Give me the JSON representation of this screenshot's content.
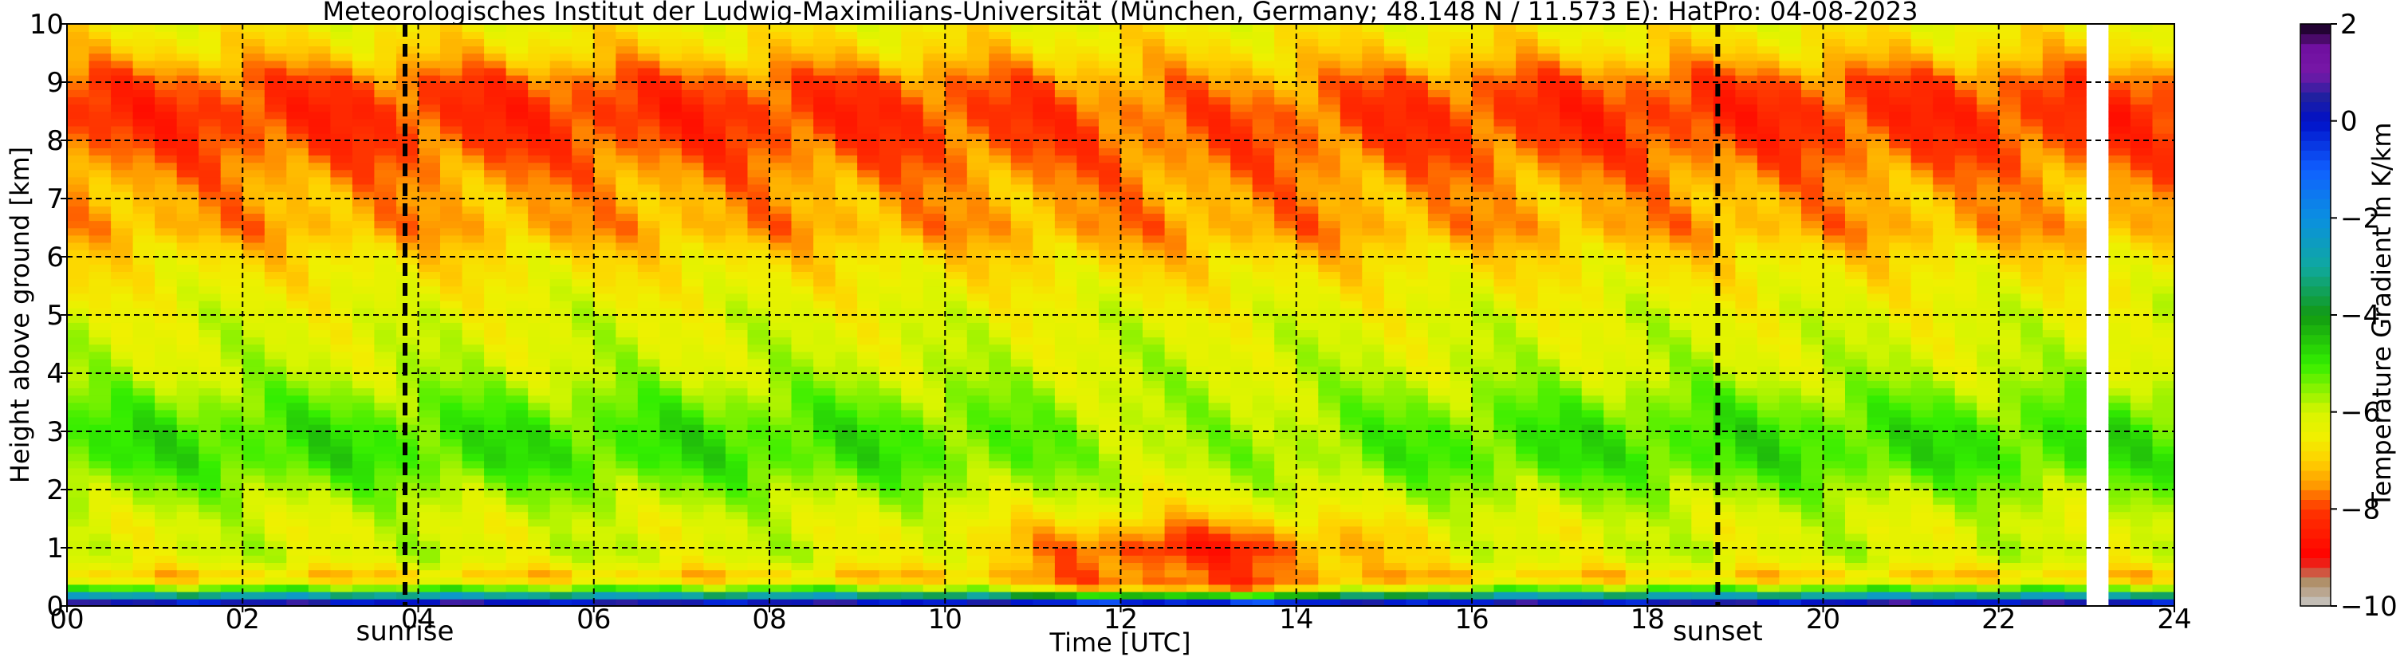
{
  "chart_data": {
    "type": "heatmap",
    "title": "Meteorologisches Institut der Ludwig-Maximilians-Universität (München, Germany; 48.148 N / 11.573 E):    HatPro: 04-08-2023",
    "xlabel": "Time [UTC]",
    "ylabel": "Height above ground [km]",
    "xlim": [
      0,
      24
    ],
    "ylim": [
      0,
      10
    ],
    "x_ticks": [
      0,
      2,
      4,
      6,
      8,
      10,
      12,
      14,
      16,
      18,
      20,
      22,
      24
    ],
    "x_tick_labels": [
      "00",
      "02",
      "04",
      "06",
      "08",
      "10",
      "12",
      "14",
      "16",
      "18",
      "20",
      "22",
      "24"
    ],
    "y_ticks": [
      0,
      1,
      2,
      3,
      4,
      5,
      6,
      7,
      8,
      9,
      10
    ],
    "y_tick_labels": [
      "0",
      "1",
      "2",
      "3",
      "4",
      "5",
      "6",
      "7",
      "8",
      "9",
      "10"
    ],
    "grid": true,
    "events": [
      {
        "label": "sunrise",
        "time": 3.85
      },
      {
        "label": "sunset",
        "time": 18.8
      }
    ],
    "colorbar": {
      "label": "Temperature Gradient in K/km",
      "range": [
        -10,
        2
      ],
      "ticks": [
        2,
        0,
        -2,
        -4,
        -6,
        -8,
        -10
      ],
      "tick_labels": [
        "2",
        "0",
        "−2",
        "−4",
        "−6",
        "−8",
        "−10"
      ],
      "colors": [
        {
          "value": -10,
          "color": "#c8c8c8"
        },
        {
          "value": -9.5,
          "color": "#b0906a"
        },
        {
          "value": -9,
          "color": "#ff0000"
        },
        {
          "value": -8,
          "color": "#ff3500"
        },
        {
          "value": -7.5,
          "color": "#ff9a00"
        },
        {
          "value": -7,
          "color": "#ffd200"
        },
        {
          "value": -6.5,
          "color": "#f0f000"
        },
        {
          "value": -6,
          "color": "#d8f500"
        },
        {
          "value": -5,
          "color": "#33ee00"
        },
        {
          "value": -4,
          "color": "#129a12"
        },
        {
          "value": -3,
          "color": "#10a8a0"
        },
        {
          "value": -2,
          "color": "#0a90e0"
        },
        {
          "value": -1,
          "color": "#1060ff"
        },
        {
          "value": 0,
          "color": "#0010c8"
        },
        {
          "value": 0.5,
          "color": "#2020a0"
        },
        {
          "value": 1,
          "color": "#7818a8"
        },
        {
          "value": 1.5,
          "color": "#7010a0"
        },
        {
          "value": 2,
          "color": "#100018"
        }
      ]
    },
    "height_profile_km": [
      0.05,
      0.15,
      0.25,
      0.4,
      0.55,
      0.75,
      1.0,
      1.3,
      1.6,
      2.0,
      2.5,
      3.0,
      3.5,
      4.0,
      4.5,
      5.0,
      5.5,
      6.0,
      6.5,
      7.0,
      7.5,
      8.0,
      8.5,
      9.0,
      9.5,
      10.0
    ],
    "typical_gradient_k_per_km": [
      0.5,
      -2.0,
      -4.5,
      -6.5,
      -7.0,
      -6.2,
      -6.0,
      -6.2,
      -6.0,
      -5.6,
      -5.0,
      -5.0,
      -5.4,
      -5.9,
      -6.1,
      -6.2,
      -6.5,
      -6.8,
      -7.4,
      -7.3,
      -7.6,
      -8.0,
      -8.2,
      -7.9,
      -7.0,
      -6.5
    ],
    "midday_gradient_k_per_km": [
      0.0,
      -3.5,
      -7.0,
      -8.0,
      -7.8,
      -8.0,
      -8.4,
      -7.6,
      -6.8,
      -6.2,
      -5.8,
      -5.8,
      -5.9,
      -6.0,
      -6.1,
      -6.3,
      -6.6,
      -7.0,
      -7.5,
      -7.4,
      -7.6,
      -7.8,
      -7.8,
      -7.4,
      -6.9,
      -6.5
    ],
    "missing_data_time": 23.2
  }
}
